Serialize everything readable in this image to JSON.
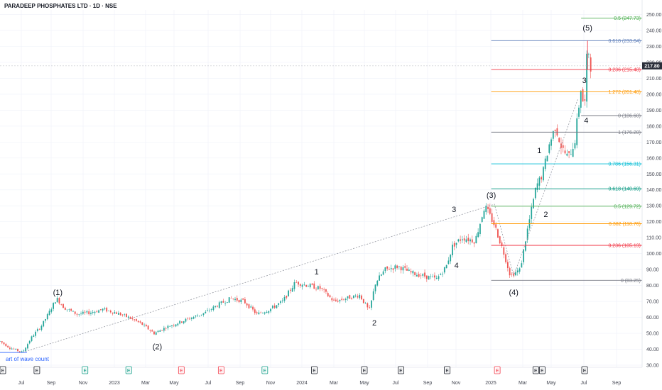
{
  "header": {
    "title": "PARADEEP PHOSPHATES LTD · 1D · NSE"
  },
  "price_tag": {
    "value": "217.80",
    "color": "#2a2e39"
  },
  "colors": {
    "up": "#26a69a",
    "down": "#ef5350",
    "dotted": "#9598a1",
    "blue_line": "#2962ff",
    "red": "#f23645"
  },
  "chart_data": {
    "type": "line",
    "title": "PARADEEP PHOSPHATES LTD · 1D · NSE",
    "x_ticks": [
      "Jul",
      "Sep",
      "Nov",
      "2023",
      "Mar",
      "May",
      "Jul",
      "Sep",
      "Nov",
      "2024",
      "Mar",
      "May",
      "Jul",
      "Sep",
      "Nov",
      "2025",
      "Mar",
      "May",
      "Jul",
      "Sep"
    ],
    "y_ticks": [
      "250.00",
      "240.00",
      "230.00",
      "220.00",
      "210.00",
      "200.00",
      "190.00",
      "180.00",
      "170.00",
      "160.00",
      "150.00",
      "140.00",
      "130.00",
      "120.00",
      "110.00",
      "100.00",
      "90.00",
      "80.00",
      "70.00",
      "60.00",
      "50.00",
      "40.00",
      "30.00"
    ],
    "ylim": [
      30,
      252
    ],
    "log_scale": false,
    "grid": true,
    "price_path": [
      {
        "x": 0.0,
        "y": 45
      },
      {
        "x": 0.015,
        "y": 41
      },
      {
        "x": 0.035,
        "y": 38
      },
      {
        "x": 0.05,
        "y": 48
      },
      {
        "x": 0.065,
        "y": 55
      },
      {
        "x": 0.075,
        "y": 62
      },
      {
        "x": 0.088,
        "y": 72
      },
      {
        "x": 0.1,
        "y": 66
      },
      {
        "x": 0.12,
        "y": 62
      },
      {
        "x": 0.14,
        "y": 63
      },
      {
        "x": 0.16,
        "y": 65
      },
      {
        "x": 0.18,
        "y": 63
      },
      {
        "x": 0.2,
        "y": 60
      },
      {
        "x": 0.22,
        "y": 56
      },
      {
        "x": 0.24,
        "y": 50
      },
      {
        "x": 0.26,
        "y": 54
      },
      {
        "x": 0.28,
        "y": 57
      },
      {
        "x": 0.3,
        "y": 60
      },
      {
        "x": 0.32,
        "y": 63
      },
      {
        "x": 0.34,
        "y": 68
      },
      {
        "x": 0.36,
        "y": 72
      },
      {
        "x": 0.38,
        "y": 70
      },
      {
        "x": 0.4,
        "y": 62
      },
      {
        "x": 0.42,
        "y": 65
      },
      {
        "x": 0.44,
        "y": 70
      },
      {
        "x": 0.46,
        "y": 82
      },
      {
        "x": 0.48,
        "y": 80
      },
      {
        "x": 0.5,
        "y": 78
      },
      {
        "x": 0.52,
        "y": 70
      },
      {
        "x": 0.54,
        "y": 72
      },
      {
        "x": 0.56,
        "y": 74
      },
      {
        "x": 0.575,
        "y": 64
      },
      {
        "x": 0.585,
        "y": 82
      },
      {
        "x": 0.6,
        "y": 90
      },
      {
        "x": 0.62,
        "y": 92
      },
      {
        "x": 0.64,
        "y": 88
      },
      {
        "x": 0.66,
        "y": 86
      },
      {
        "x": 0.68,
        "y": 84
      },
      {
        "x": 0.695,
        "y": 92
      },
      {
        "x": 0.705,
        "y": 105
      },
      {
        "x": 0.72,
        "y": 110
      },
      {
        "x": 0.74,
        "y": 108
      },
      {
        "x": 0.755,
        "y": 130
      },
      {
        "x": 0.77,
        "y": 118
      },
      {
        "x": 0.785,
        "y": 100
      },
      {
        "x": 0.795,
        "y": 86
      },
      {
        "x": 0.81,
        "y": 90
      },
      {
        "x": 0.82,
        "y": 112
      },
      {
        "x": 0.835,
        "y": 142
      },
      {
        "x": 0.845,
        "y": 150
      },
      {
        "x": 0.855,
        "y": 168
      },
      {
        "x": 0.865,
        "y": 180
      },
      {
        "x": 0.875,
        "y": 166
      },
      {
        "x": 0.885,
        "y": 160
      },
      {
        "x": 0.895,
        "y": 170
      },
      {
        "x": 0.905,
        "y": 205
      },
      {
        "x": 0.91,
        "y": 188
      },
      {
        "x": 0.915,
        "y": 232
      },
      {
        "x": 0.92,
        "y": 217.8
      }
    ],
    "wave_labels": [
      {
        "text": "(1)",
        "x": 0.09,
        "y": 74
      },
      {
        "text": "(2)",
        "x": 0.245,
        "y": 40
      },
      {
        "text": "1",
        "x": 0.493,
        "y": 87
      },
      {
        "text": "2",
        "x": 0.583,
        "y": 55
      },
      {
        "text": "3",
        "x": 0.707,
        "y": 126
      },
      {
        "text": "4",
        "x": 0.711,
        "y": 91
      },
      {
        "text": "(3)",
        "x": 0.765,
        "y": 135
      },
      {
        "text": "(4)",
        "x": 0.8,
        "y": 74
      },
      {
        "text": "1",
        "x": 0.84,
        "y": 163
      },
      {
        "text": "2",
        "x": 0.85,
        "y": 123
      },
      {
        "text": "3",
        "x": 0.91,
        "y": 207
      },
      {
        "text": "4",
        "x": 0.913,
        "y": 182
      },
      {
        "text": "(5)",
        "x": 0.915,
        "y": 240
      }
    ],
    "dotted_line": [
      {
        "x": 0.035,
        "y": 38
      },
      {
        "x": 0.77,
        "y": 131
      },
      {
        "x": 0.8,
        "y": 86
      },
      {
        "x": 0.9,
        "y": 197
      }
    ],
    "annotation": "art of wave count",
    "fib_levels": [
      {
        "label": "0.5 (247.73)",
        "value": 247.73,
        "color": "#4caf50",
        "x0": 0.905
      },
      {
        "label": "0.618 (233.64)",
        "value": 233.64,
        "color": "#5b7cb8",
        "x0": 0.765
      },
      {
        "label": "0.236 (215.48)",
        "value": 215.48,
        "color": "#f23645",
        "x0": 0.765
      },
      {
        "label": "1.272 (201.48)",
        "value": 201.48,
        "color": "#ff9800",
        "x0": 0.765
      },
      {
        "label": "0 (186.60)",
        "value": 186.6,
        "color": "#787b86",
        "x0": 0.905
      },
      {
        "label": "1 (176.20)",
        "value": 176.2,
        "color": "#787b86",
        "x0": 0.765
      },
      {
        "label": "0.786 (156.31)",
        "value": 156.31,
        "color": "#00bcd4",
        "x0": 0.765
      },
      {
        "label": "0.618 (140.69)",
        "value": 140.69,
        "color": "#089981",
        "x0": 0.765
      },
      {
        "label": "0.5 (129.72)",
        "value": 129.72,
        "color": "#4caf50",
        "x0": 0.765
      },
      {
        "label": "0.382 (118.76)",
        "value": 118.76,
        "color": "#ff9800",
        "x0": 0.765
      },
      {
        "label": "0.236 (105.19)",
        "value": 105.19,
        "color": "#f23645",
        "x0": 0.765
      },
      {
        "label": "0 (83.25)",
        "value": 83.25,
        "color": "#787b86",
        "x0": 0.765
      }
    ],
    "events": [
      {
        "kind": "E",
        "x": 0.0,
        "color": "#131722"
      },
      {
        "kind": "E",
        "x": 0.053,
        "color": "#131722"
      },
      {
        "kind": "E",
        "x": 0.128,
        "color": "#089981"
      },
      {
        "kind": "E",
        "x": 0.196,
        "color": "#089981"
      },
      {
        "kind": "E",
        "x": 0.278,
        "color": "#f23645"
      },
      {
        "kind": "E",
        "x": 0.34,
        "color": "#f23645"
      },
      {
        "kind": "E",
        "x": 0.408,
        "color": "#089981"
      },
      {
        "kind": "E",
        "x": 0.485,
        "color": "#131722"
      },
      {
        "kind": "E",
        "x": 0.563,
        "color": "#131722"
      },
      {
        "kind": "E",
        "x": 0.62,
        "color": "#131722"
      },
      {
        "kind": "E",
        "x": 0.692,
        "color": "#131722"
      },
      {
        "kind": "E",
        "x": 0.77,
        "color": "#f23645"
      },
      {
        "kind": "E",
        "x": 0.83,
        "color": "#131722"
      },
      {
        "kind": "E",
        "x": 0.84,
        "color": "#131722"
      },
      {
        "kind": "E",
        "x": 0.906,
        "color": "#131722"
      }
    ]
  }
}
